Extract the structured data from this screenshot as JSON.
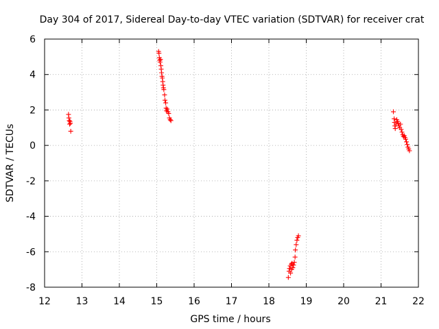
{
  "chart_data": {
    "type": "scatter",
    "title": "Day 304 of 2017, Sidereal Day-to-day VTEC variation (SDTVAR) for receiver crat",
    "xlabel": "GPS time / hours",
    "ylabel": "SDTVAR / TECUs",
    "xlim": [
      12,
      22
    ],
    "ylim": [
      -8,
      6
    ],
    "xticks": [
      12,
      13,
      14,
      15,
      16,
      17,
      18,
      19,
      20,
      21,
      22
    ],
    "yticks": [
      -8,
      -6,
      -4,
      -2,
      0,
      2,
      4,
      6
    ],
    "xtick_labels": [
      "12",
      "13",
      "14",
      "15",
      "16",
      "17",
      "18",
      "19",
      "20",
      "21",
      "22"
    ],
    "ytick_labels": [
      "-8",
      "-6",
      "-4",
      "-2",
      "0",
      "2",
      "4",
      "6"
    ],
    "grid": true,
    "marker": "+",
    "series": [
      {
        "name": "SDTVAR",
        "color": "#ff0000",
        "points": [
          [
            12.64,
            1.75
          ],
          [
            12.65,
            1.55
          ],
          [
            12.66,
            1.4
          ],
          [
            12.67,
            1.2
          ],
          [
            12.68,
            1.35
          ],
          [
            12.69,
            1.25
          ],
          [
            12.7,
            0.8
          ],
          [
            15.05,
            5.3
          ],
          [
            15.06,
            5.2
          ],
          [
            15.07,
            4.95
          ],
          [
            15.08,
            4.8
          ],
          [
            15.09,
            4.7
          ],
          [
            15.1,
            4.85
          ],
          [
            15.11,
            4.5
          ],
          [
            15.12,
            4.3
          ],
          [
            15.13,
            4.1
          ],
          [
            15.14,
            3.9
          ],
          [
            15.15,
            3.8
          ],
          [
            15.16,
            3.6
          ],
          [
            15.17,
            3.4
          ],
          [
            15.18,
            3.25
          ],
          [
            15.19,
            3.15
          ],
          [
            15.21,
            2.85
          ],
          [
            15.22,
            2.55
          ],
          [
            15.24,
            2.4
          ],
          [
            15.25,
            2.1
          ],
          [
            15.26,
            1.95
          ],
          [
            15.28,
            2.05
          ],
          [
            15.3,
            1.9
          ],
          [
            15.32,
            1.8
          ],
          [
            15.34,
            1.55
          ],
          [
            15.36,
            1.45
          ],
          [
            15.38,
            1.4
          ],
          [
            18.52,
            -7.45
          ],
          [
            18.54,
            -7.1
          ],
          [
            18.55,
            -6.95
          ],
          [
            18.57,
            -6.8
          ],
          [
            18.58,
            -7.2
          ],
          [
            18.6,
            -6.7
          ],
          [
            18.61,
            -7.0
          ],
          [
            18.62,
            -6.65
          ],
          [
            18.64,
            -6.9
          ],
          [
            18.66,
            -6.75
          ],
          [
            18.68,
            -6.6
          ],
          [
            18.7,
            -6.3
          ],
          [
            18.71,
            -5.9
          ],
          [
            18.73,
            -5.6
          ],
          [
            18.75,
            -5.35
          ],
          [
            18.77,
            -5.2
          ],
          [
            18.79,
            -5.1
          ],
          [
            21.33,
            1.9
          ],
          [
            21.35,
            1.5
          ],
          [
            21.36,
            1.3
          ],
          [
            21.37,
            1.1
          ],
          [
            21.38,
            0.95
          ],
          [
            21.4,
            1.2
          ],
          [
            21.42,
            1.45
          ],
          [
            21.44,
            1.35
          ],
          [
            21.46,
            1.25
          ],
          [
            21.48,
            1.1
          ],
          [
            21.5,
            1.0
          ],
          [
            21.52,
            1.2
          ],
          [
            21.54,
            0.9
          ],
          [
            21.56,
            0.75
          ],
          [
            21.58,
            0.6
          ],
          [
            21.6,
            0.5
          ],
          [
            21.62,
            0.55
          ],
          [
            21.64,
            0.45
          ],
          [
            21.66,
            0.35
          ],
          [
            21.68,
            0.2
          ],
          [
            21.7,
            0.05
          ],
          [
            21.72,
            -0.1
          ],
          [
            21.74,
            -0.2
          ],
          [
            21.76,
            -0.3
          ]
        ]
      }
    ]
  }
}
